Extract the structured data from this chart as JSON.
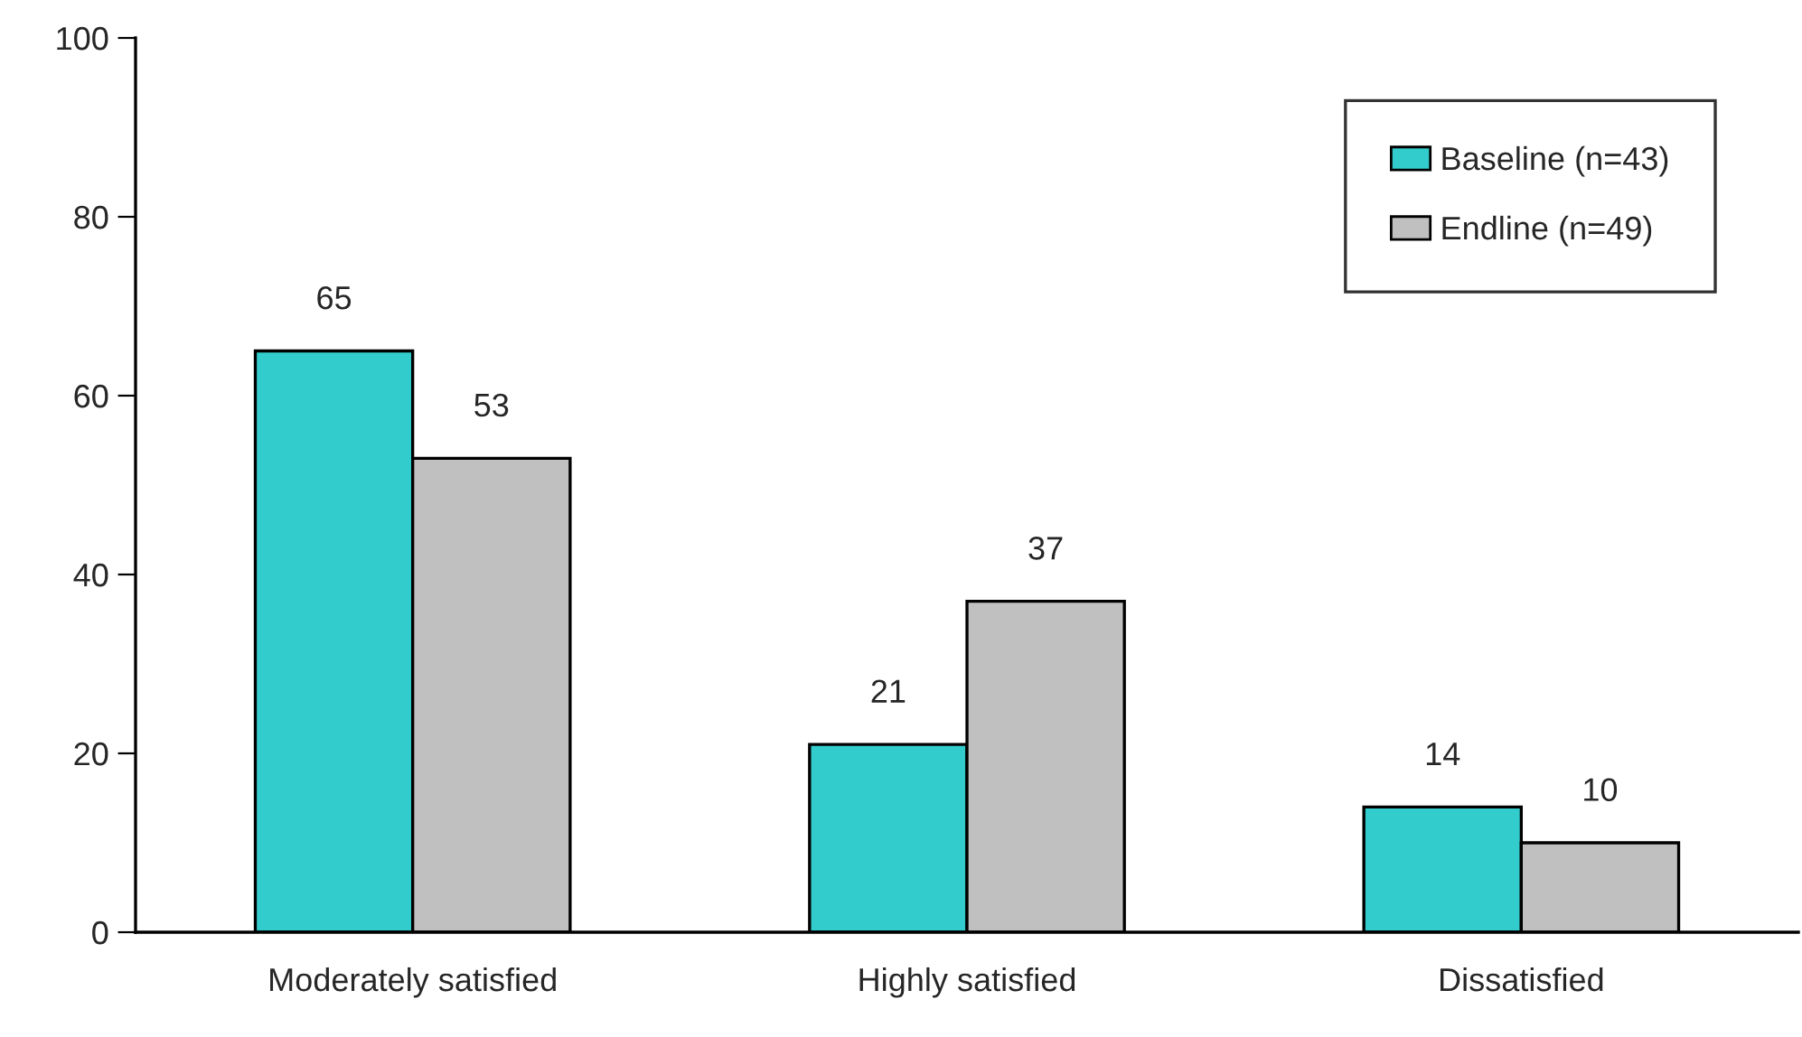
{
  "chart_data": {
    "type": "bar",
    "categories": [
      "Moderately satisfied",
      "Highly satisfied",
      "Dissatisfied"
    ],
    "series": [
      {
        "name": "Baseline (n=43)",
        "color": "#33cccc",
        "values": [
          65,
          21,
          14
        ]
      },
      {
        "name": "Endline (n=49)",
        "color": "#c0c0c0",
        "values": [
          53,
          37,
          10
        ]
      }
    ],
    "ylim": [
      0,
      100
    ],
    "yticks": [
      0,
      20,
      40,
      60,
      80,
      100
    ],
    "data_labels": true,
    "legend": "top right",
    "grid": false
  }
}
